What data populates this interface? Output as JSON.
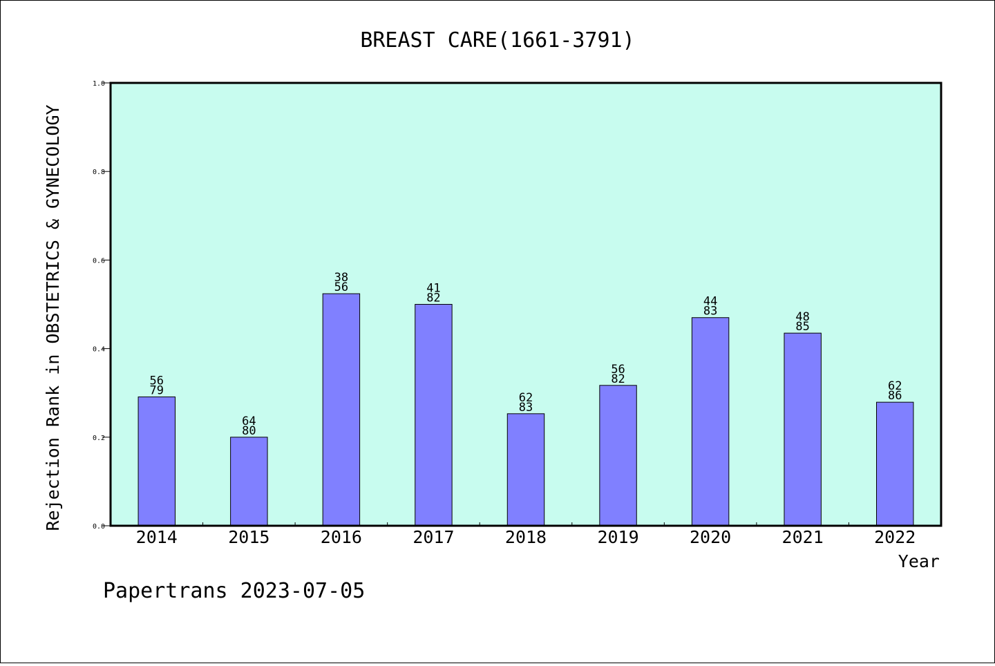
{
  "chart_data": {
    "type": "bar",
    "title": "BREAST CARE(1661-3791)",
    "xlabel": "Year",
    "ylabel": "Rejection Rank in OBSTETRICS & GYNECOLOGY",
    "ylim": [
      0,
      1.0
    ],
    "yticks": [
      "0.0",
      "0.2",
      "0.4",
      "0.6",
      "0.8",
      "1.0"
    ],
    "categories": [
      "2014",
      "2015",
      "2016",
      "2017",
      "2018",
      "2019",
      "2020",
      "2021",
      "2022"
    ],
    "values": [
      0.291,
      0.2,
      0.524,
      0.5,
      0.253,
      0.317,
      0.47,
      0.435,
      0.279
    ],
    "labels_top": [
      "56",
      "64",
      "38",
      "41",
      "62",
      "56",
      "44",
      "48",
      "62"
    ],
    "labels_bottom": [
      "79",
      "80",
      "56",
      "82",
      "83",
      "82",
      "83",
      "85",
      "86"
    ],
    "grid": false,
    "colors": {
      "plot_background": "#c8fcef",
      "bar": "#8080ff",
      "bar_edge": "#000000"
    }
  },
  "footer": "Papertrans 2023-07-05"
}
